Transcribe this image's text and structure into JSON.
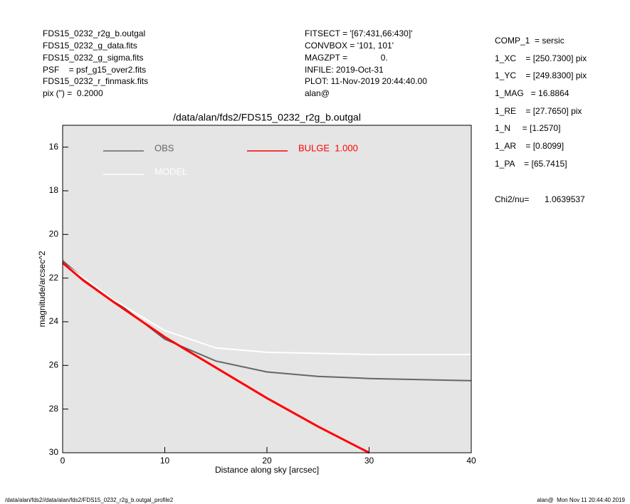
{
  "header_left": [
    "FDS15_0232_r2g_b.outgal",
    "FDS15_0232_g_data.fits",
    "FDS15_0232_g_sigma.fits",
    "PSF    = psf_g15_over2.fits",
    "FDS15_0232_r_finmask.fits",
    "pix (\") =  0.2000"
  ],
  "header_center": [
    "FITSECT = '[67:431,66:430]'",
    "CONVBOX = '101, 101'",
    "MAGZPT =              0.",
    "INFILE: 2019-Oct-31",
    "PLOT: 11-Nov-2019 20:44:40.00",
    "alan@"
  ],
  "parameters": [
    "COMP_1  = sersic",
    "1_XC    = [250.7300] pix",
    "1_YC    = [249.8300] pix",
    "1_MAG   = 16.8864",
    "1_RE    = [27.7650] pix",
    "1_N     = [1.2570]",
    "1_AR    = [0.8099]",
    "1_PA    = [65.7415]"
  ],
  "chi2": [
    "Chi2/nu=",
    "1.0639537"
  ],
  "footer_left": "/data/alan/fds2//data/alan/fds2/FDS15_0232_r2g_b.outgal_profile2",
  "footer_right": "alan@  Mon Nov 11 20:44:40 2019",
  "chart_data": {
    "type": "line",
    "title": "/data/alan/fds2/FDS15_0232_r2g_b.outgal",
    "x_label": "Distance along sky [arcsec]",
    "y_label": "magnitude/arcsec^2",
    "xlim": [
      0,
      40
    ],
    "xticks": [
      0,
      10,
      20,
      30,
      40
    ],
    "ylim": [
      30,
      15
    ],
    "yticks": [
      16,
      18,
      20,
      22,
      24,
      26,
      28,
      30
    ],
    "series": [
      {
        "name": "OBS",
        "color": "#666666",
        "x": [
          0,
          2,
          5,
          10,
          15,
          20,
          25,
          30,
          40
        ],
        "values": [
          21.2,
          22.0,
          23.0,
          24.8,
          25.8,
          26.3,
          26.5,
          26.6,
          26.7
        ]
      },
      {
        "name": "MODEL",
        "color": "#ffffff",
        "x": [
          0,
          5,
          10,
          15,
          20,
          30,
          40
        ],
        "values": [
          21.3,
          23.0,
          24.4,
          25.2,
          25.4,
          25.5,
          25.5
        ]
      },
      {
        "name": "BULGE  1.000",
        "color": "#ff0000",
        "x": [
          0,
          2,
          5,
          10,
          15,
          20,
          25,
          30
        ],
        "values": [
          21.3,
          22.1,
          23.1,
          24.7,
          26.1,
          27.5,
          28.8,
          30.0
        ]
      }
    ]
  }
}
